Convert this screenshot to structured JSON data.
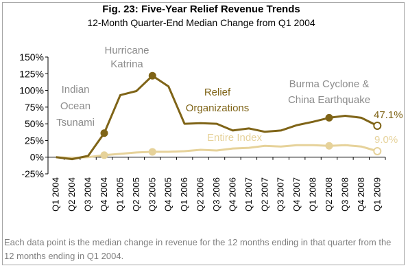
{
  "header": {
    "title": "Fig. 23: Five-Year Relief Revenue Trends",
    "subtitle": "12-Month Quarter-End Median Change from Q1 2004"
  },
  "footnote": "Each data point is the median change in revenue for the 12 months ending in that quarter from the 12 months ending in Q1 2004.",
  "colors": {
    "relief": "#7f6417",
    "index": "#e6d29a"
  },
  "chart_data": {
    "type": "line",
    "title": "Fig. 23: Five-Year Relief Revenue Trends",
    "subtitle": "12-Month Quarter-End Median Change from Q1 2004",
    "categories": [
      "Q1 2004",
      "Q2 2004",
      "Q3 2004",
      "Q4 2004",
      "Q1 2005",
      "Q2 2005",
      "Q3 2005",
      "Q4 2005",
      "Q1 2006",
      "Q2 2006",
      "Q3 2006",
      "Q4 2006",
      "Q1 2007",
      "Q2 2007",
      "Q3 2007",
      "Q4 2007",
      "Q1 2008",
      "Q2 2008",
      "Q3 2008",
      "Q4 2008",
      "Q1 2009"
    ],
    "ylim": [
      -25,
      150
    ],
    "yticks": [
      -25,
      0,
      25,
      50,
      75,
      100,
      125,
      150
    ],
    "ytick_labels": [
      "-25%",
      "0%",
      "25%",
      "50%",
      "75%",
      "100%",
      "125%",
      "150%"
    ],
    "grid": false,
    "series": [
      {
        "name": "Relief Organizations",
        "values": [
          0,
          -3,
          2,
          36,
          93,
          99,
          122,
          106,
          50,
          51,
          50,
          40,
          43,
          38,
          40,
          48,
          53,
          59,
          62,
          59,
          47.1
        ],
        "markers": [
          3,
          6,
          17,
          20
        ]
      },
      {
        "name": "Entire Index",
        "values": [
          0,
          -1,
          0,
          3,
          5,
          7,
          8,
          8,
          9,
          11,
          10,
          13,
          14,
          17,
          16,
          18,
          18,
          17,
          18,
          16,
          9.0
        ],
        "markers": [
          3,
          6,
          17,
          20
        ]
      }
    ],
    "annotations": [
      {
        "lines": [
          "Hurricane",
          "Katrina"
        ]
      },
      {
        "lines": [
          "Indian",
          "Ocean",
          "Tsunami"
        ]
      },
      {
        "lines": [
          "Relief",
          "Organizations"
        ]
      },
      {
        "lines": [
          "Burma Cyclone &",
          "China Earthquake"
        ]
      },
      {
        "lines": [
          "Entire Index"
        ]
      },
      {
        "lines": [
          "47.1%"
        ]
      },
      {
        "lines": [
          "9.0%"
        ]
      }
    ]
  }
}
